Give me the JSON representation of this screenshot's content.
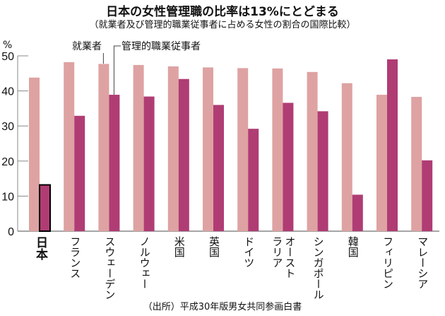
{
  "chart_data": {
    "type": "bar",
    "title": "日本の女性管理職の比率は13%にとどまる",
    "subtitle": "（就業者及び管理的職業従事者に占める女性の割合の国際比較）",
    "ylabel": "%",
    "ylim": [
      0,
      50
    ],
    "yticks": [
      0,
      10,
      20,
      30,
      40,
      50
    ],
    "grid": false,
    "categories": [
      "日本",
      "フランス",
      "スウェーデン",
      "ノルウェー",
      "米国",
      "英国",
      "ドイツ",
      "オーストラリア",
      "シンガポール",
      "韓国",
      "フィリピン",
      "マレーシア"
    ],
    "category_label_lines": [
      [
        "日本"
      ],
      [
        "フランス"
      ],
      [
        "スウェーデン"
      ],
      [
        "ノルウェー"
      ],
      [
        "米国"
      ],
      [
        "英国"
      ],
      [
        "ドイツ"
      ],
      [
        "オースト",
        "ラリア"
      ],
      [
        "シンガポール"
      ],
      [
        "韓国"
      ],
      [
        "フィリピン"
      ],
      [
        "マレーシア"
      ]
    ],
    "highlight_category": "日本",
    "series": [
      {
        "name": "就業者",
        "color": "#dea2a2",
        "values": [
          43.8,
          48.2,
          47.7,
          47.4,
          47.0,
          46.7,
          46.5,
          46.4,
          45.4,
          42.2,
          38.9,
          38.3
        ]
      },
      {
        "name": "管理的職業従事者",
        "color": "#b03c74",
        "values": [
          13.2,
          32.9,
          38.9,
          38.4,
          43.4,
          36.0,
          29.2,
          36.6,
          34.2,
          10.4,
          49.0,
          20.2
        ]
      }
    ],
    "legend_placement": "top (annotation leaders)",
    "source": "（出所）平成30年版男女共同参画白書"
  }
}
